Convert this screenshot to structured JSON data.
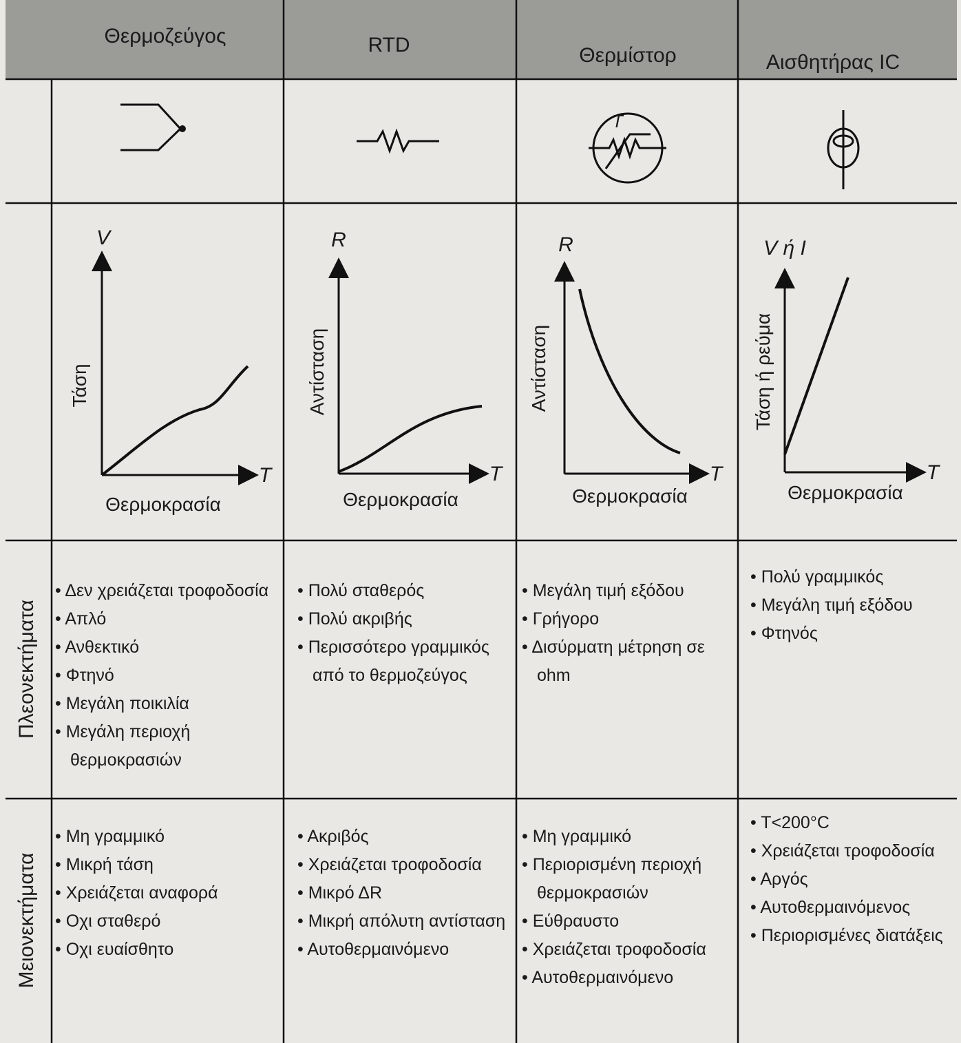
{
  "table": {
    "columns": [
      "Θερμοζεύγος",
      "RTD",
      "Θερμίστορ",
      "Αισθητήρας IC"
    ],
    "thermistor_symbol_label": "T",
    "graphs": [
      {
        "y_axis": "V",
        "y_label": "Τάση",
        "x_axis": "T",
        "x_label": "Θερμοκρασία"
      },
      {
        "y_axis": "R",
        "y_label": "Αντίσταση",
        "x_axis": "T",
        "x_label": "Θερμοκρασία"
      },
      {
        "y_axis": "R",
        "y_label": "Αντίσταση",
        "x_axis": "T",
        "x_label": "Θερμοκρασία"
      },
      {
        "y_axis": "V ή I",
        "y_label": "Τάση ή ρεύμα",
        "x_axis": "T",
        "x_label": "Θερμοκρασία"
      }
    ],
    "rows": [
      {
        "label": "Πλεονεκτήματα",
        "cells": [
          [
            "Δεν χρειάζεται τροφοδοσία",
            "Απλό",
            "Ανθεκτικό",
            "Φτηνό",
            "Μεγάλη ποικιλία",
            "Μεγάλη περιοχή θερμοκρασιών"
          ],
          [
            "Πολύ σταθερός",
            "Πολύ ακριβής",
            "Περισσότερο γραμμικός από το θερμοζεύγος"
          ],
          [
            "Μεγάλη τιμή εξόδου",
            "Γρήγορο",
            "Δισύρματη μέτρηση σε ohm"
          ],
          [
            "Πολύ γραμμικός",
            "Μεγάλη τιμή εξόδου",
            "Φτηνός"
          ]
        ]
      },
      {
        "label": "Μειονεκτήματα",
        "cells": [
          [
            "Μη γραμμικό",
            "Μικρή τάση",
            "Χρειάζεται αναφορά",
            "Οχι σταθερό",
            "Οχι ευαίσθητο"
          ],
          [
            "Ακριβός",
            "Χρειάζεται τροφοδοσία",
            "Μικρό ΔR",
            "Μικρή απόλυτη αντίσταση",
            "Αυτοθερμαινόμενο"
          ],
          [
            "Μη γραμμικό",
            "Περιορισμένη περιοχή θερμοκρασιών",
            "Εύθραυστο",
            "Χρειάζεται τροφοδοσία",
            "Αυτοθερμαινόμενο"
          ],
          [
            "T<200°C",
            "Χρειάζεται τροφοδοσία",
            "Αργός",
            "Αυτοθερμαινόμενος",
            "Περιορισμένες διατάξεις"
          ]
        ]
      }
    ]
  }
}
